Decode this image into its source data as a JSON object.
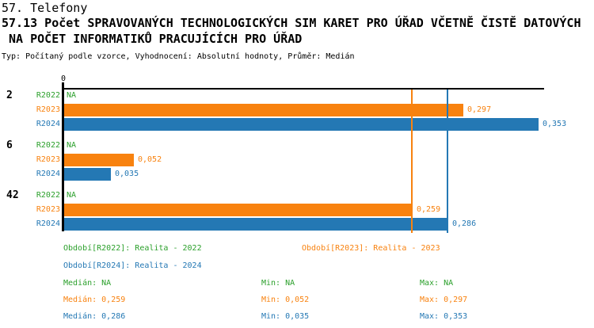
{
  "title": {
    "line1": "57. Telefony",
    "line2": "57.13 Počet SPRAVOVANÝCH TECHNOLOGICKÝCH SIM KARET PRO ÚŘAD VČETNĚ ČISTĚ DATOVÝCH",
    "line3": " NA POČET INFORMATIKŮ PRACUJÍCÍCH PRO ÚŘAD",
    "meta": "Typ: Počítaný podle vzorce, Vyhodnocení: Absolutní hodnoty, Průměr: Medián"
  },
  "chart_data": {
    "type": "bar",
    "orientation": "horizontal",
    "title": "57.13 Počet SPRAVOVANÝCH TECHNOLOGICKÝCH SIM KARET PRO ÚŘAD VČETNĚ ČISTĚ DATOVÝCH NA POČET INFORMATIKŮ PRACUJÍCÍCH PRO ÚŘAD",
    "value_format": "decimal-comma",
    "axis": {
      "tick_label": "0",
      "min": 0,
      "max": 0.353,
      "grid": false
    },
    "series_colors": {
      "R2022": "#2CA02C",
      "R2023": "#F8820F",
      "R2024": "#2478B4"
    },
    "axis_color": "#000000",
    "groups": [
      {
        "label": "2",
        "bars": [
          {
            "series": "R2022",
            "value": null,
            "display": "NA"
          },
          {
            "series": "R2023",
            "value": 0.297,
            "display": "0,297"
          },
          {
            "series": "R2024",
            "value": 0.353,
            "display": "0,353"
          }
        ]
      },
      {
        "label": "6",
        "bars": [
          {
            "series": "R2022",
            "value": null,
            "display": "NA"
          },
          {
            "series": "R2023",
            "value": 0.052,
            "display": "0,052"
          },
          {
            "series": "R2024",
            "value": 0.035,
            "display": "0,035"
          }
        ]
      },
      {
        "label": "42",
        "bars": [
          {
            "series": "R2022",
            "value": null,
            "display": "NA"
          },
          {
            "series": "R2023",
            "value": 0.259,
            "display": "0,259"
          },
          {
            "series": "R2024",
            "value": 0.286,
            "display": "0,286"
          }
        ]
      }
    ],
    "median_lines": [
      {
        "series": "R2023",
        "value": 0.259
      },
      {
        "series": "R2024",
        "value": 0.286
      }
    ],
    "legend": [
      {
        "series": "R2022",
        "text": "Období[R2022]: Realita - 2022"
      },
      {
        "series": "R2023",
        "text": "Období[R2023]: Realita - 2023"
      },
      {
        "series": "R2024",
        "text": "Období[R2024]: Realita - 2024"
      }
    ],
    "stats": [
      {
        "series": "R2022",
        "median": "Medián: NA",
        "min": "Min: NA",
        "max": "Max: NA"
      },
      {
        "series": "R2023",
        "median": "Medián: 0,259",
        "min": "Min: 0,052",
        "max": "Max: 0,297"
      },
      {
        "series": "R2024",
        "median": "Medián: 0,286",
        "min": "Min: 0,035",
        "max": "Max: 0,353"
      }
    ]
  }
}
